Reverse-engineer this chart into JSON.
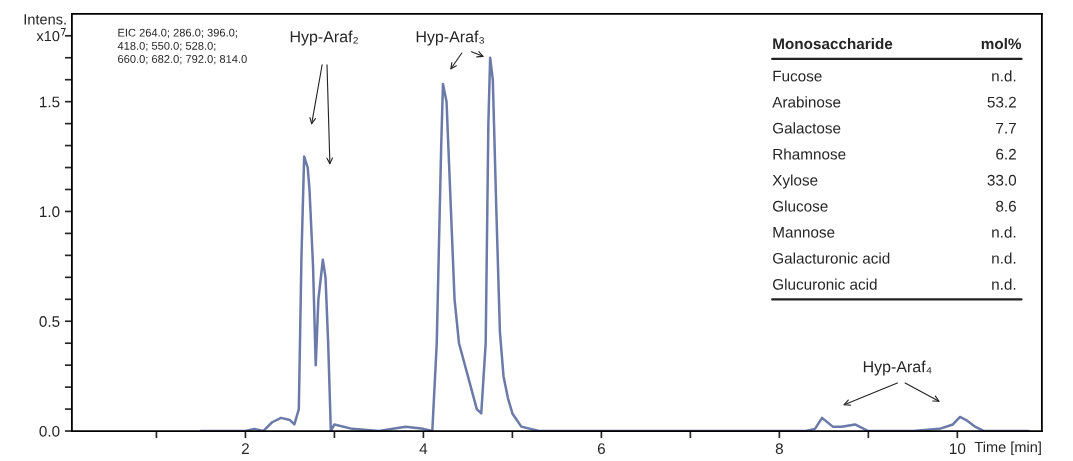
{
  "chart_data": {
    "type": "line",
    "xlabel": "Time [min]",
    "ylabel": "Intens.\nx10$^{7}$",
    "color": "#6b7aa8",
    "x": [
      1.5,
      1.8,
      2.0,
      2.1,
      2.2,
      2.3,
      2.4,
      2.5,
      2.55,
      2.6,
      2.63,
      2.66,
      2.7,
      2.72,
      2.76,
      2.79,
      2.82,
      2.87,
      2.9,
      2.93,
      2.96,
      3.0,
      3.2,
      3.5,
      3.8,
      4.0,
      4.1,
      4.15,
      4.2,
      4.22,
      4.26,
      4.3,
      4.35,
      4.4,
      4.5,
      4.6,
      4.65,
      4.7,
      4.73,
      4.75,
      4.78,
      4.82,
      4.86,
      4.9,
      4.95,
      5.0,
      5.1,
      5.3,
      6.0,
      7.0,
      8.0,
      8.3,
      8.4,
      8.48,
      8.6,
      8.7,
      8.85,
      8.9,
      9.0,
      9.1,
      9.5,
      9.8,
      9.95,
      10.03,
      10.1,
      10.2,
      10.3,
      10.8
    ],
    "values": [
      0.0,
      0.0,
      0.0,
      0.01,
      0.0,
      0.04,
      0.06,
      0.05,
      0.03,
      0.1,
      0.8,
      1.25,
      1.2,
      1.1,
      0.75,
      0.3,
      0.6,
      0.78,
      0.7,
      0.4,
      0.0,
      0.03,
      0.01,
      0.0,
      0.02,
      0.01,
      0.0,
      0.4,
      1.3,
      1.58,
      1.5,
      1.1,
      0.6,
      0.4,
      0.25,
      0.1,
      0.08,
      0.4,
      1.4,
      1.7,
      1.6,
      1.0,
      0.45,
      0.25,
      0.15,
      0.08,
      0.02,
      0.0,
      0.0,
      0.0,
      0.0,
      0.0,
      0.01,
      0.06,
      0.02,
      0.02,
      0.03,
      0.02,
      0.0,
      0.0,
      0.0,
      0.01,
      0.03,
      0.064,
      0.05,
      0.02,
      0.0,
      0.0
    ],
    "xlim": [
      0.05,
      10.95
    ],
    "ylim": [
      0,
      1.9
    ],
    "xticks": [
      {
        "value": 1,
        "label": null
      },
      2,
      {
        "value": 3,
        "label": null
      },
      4,
      {
        "value": 5,
        "label": null
      },
      6,
      {
        "value": 7,
        "label": null
      },
      8,
      {
        "value": 9,
        "label": null
      },
      10
    ],
    "yticks": [
      {
        "value": 0,
        "label": "0.0"
      },
      {
        "value": 0.1,
        "label": null
      },
      {
        "value": 0.2,
        "label": null
      },
      {
        "value": 0.3,
        "label": null
      },
      {
        "value": 0.4,
        "label": null
      },
      0.5,
      {
        "value": 0.6,
        "label": null
      },
      {
        "value": 0.7,
        "label": null
      },
      {
        "value": 0.8,
        "label": null
      },
      {
        "value": 0.9,
        "label": null
      },
      {
        "value": 1.0,
        "label": "1.0"
      },
      {
        "value": 1.1,
        "label": null
      },
      {
        "value": 1.2,
        "label": null
      },
      {
        "value": 1.3,
        "label": null
      },
      {
        "value": 1.4,
        "label": null
      },
      1.5,
      {
        "value": 1.6,
        "label": null
      },
      {
        "value": 1.7,
        "label": null
      },
      {
        "value": 1.8,
        "label": null
      }
    ],
    "annotations": [
      "EIC 264.0; 286.0; 396.0;\n418.0; 550.0; 528.0;\n660.0; 682.0; 792.0; 814.0",
      "Hyp-Araf₂",
      "Hyp-Araf₃",
      "Hyp-Araf₄",
      "Monosaccharide",
      "mol%",
      "Fucose",
      "n.d.",
      "Arabinose",
      "53.2",
      "Galactose",
      "7.7",
      "Rhamnose",
      "6.2",
      "Xylose",
      "33.0",
      "Glucose",
      "8.6",
      "Mannose",
      "n.d.",
      "Galacturonic acid",
      "n.d.",
      "Glucuronic acid",
      "n.d."
    ]
  }
}
